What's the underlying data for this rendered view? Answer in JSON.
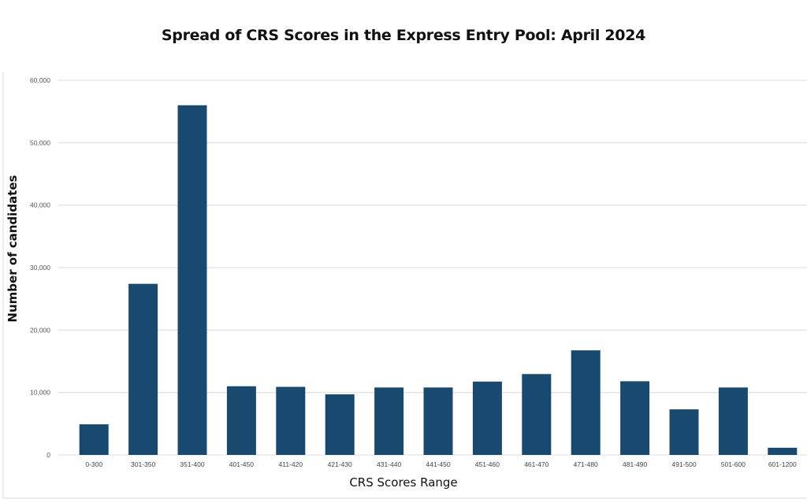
{
  "chart_data": {
    "type": "bar",
    "title": "Spread of CRS Scores in the Express Entry Pool: April 2024",
    "xlabel": "CRS Scores Range",
    "ylabel": "Number of candidates",
    "categories": [
      "0-300",
      "301-350",
      "351-400",
      "401-450",
      "411-420",
      "421-430",
      "431-440",
      "441-450",
      "451-460",
      "461-470",
      "471-480",
      "481-490",
      "491-500",
      "501-600",
      "601-1200"
    ],
    "values": [
      4900,
      27400,
      56000,
      11000,
      10900,
      9700,
      10800,
      10800,
      11750,
      12950,
      16750,
      11800,
      7300,
      10800,
      1150
    ],
    "ylim": [
      0,
      60000
    ],
    "yticks": [
      0,
      10000,
      20000,
      30000,
      40000,
      50000,
      60000
    ],
    "ytick_labels": [
      "0",
      "10,000",
      "20,000",
      "30,000",
      "40,000",
      "50,000",
      "60,000"
    ],
    "grid": true,
    "legend": "none",
    "bar_color": "#174a6e",
    "grid_color": "#e3e3e3"
  }
}
